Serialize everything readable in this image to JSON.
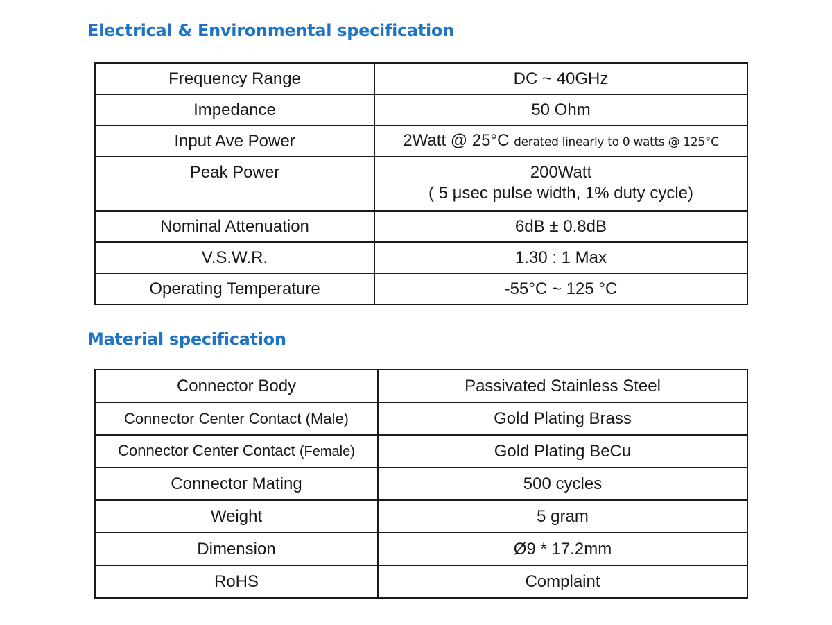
{
  "electrical": {
    "title": "Electrical & Environmental specification",
    "rows": [
      {
        "label": "Frequency Range",
        "value": "DC ~ 40GHz"
      },
      {
        "label": "Impedance",
        "value": "50 Ohm"
      },
      {
        "label": "Input Ave Power",
        "value": "2Watt @ 25°C",
        "note": "derated linearly to 0 watts @ 125°C"
      },
      {
        "label": "Peak Power",
        "value": "200Watt",
        "value_line2": "( 5 μsec pulse width, 1% duty cycle)"
      },
      {
        "label": "Nominal Attenuation",
        "value": "6dB ± 0.8dB"
      },
      {
        "label": "V.S.W.R.",
        "value": "1.30 : 1 Max"
      },
      {
        "label": "Operating Temperature",
        "value": "-55°C ~ 125 °C"
      }
    ]
  },
  "material": {
    "title": "Material specification",
    "rows": [
      {
        "label": "Connector Body",
        "value": "Passivated Stainless Steel"
      },
      {
        "label": "Connector Center Contact",
        "label_suffix": "(Male)",
        "value": "Gold Plating Brass"
      },
      {
        "label": "Connector Center Contact",
        "label_suffix": "(Female)",
        "value": "Gold Plating BeCu"
      },
      {
        "label": "Connector Mating",
        "value": "500 cycles"
      },
      {
        "label": "Weight",
        "value": "5 gram"
      },
      {
        "label": "Dimension",
        "value": "Ø9 * 17.2mm"
      },
      {
        "label": "RoHS",
        "value": "Complaint"
      }
    ]
  }
}
